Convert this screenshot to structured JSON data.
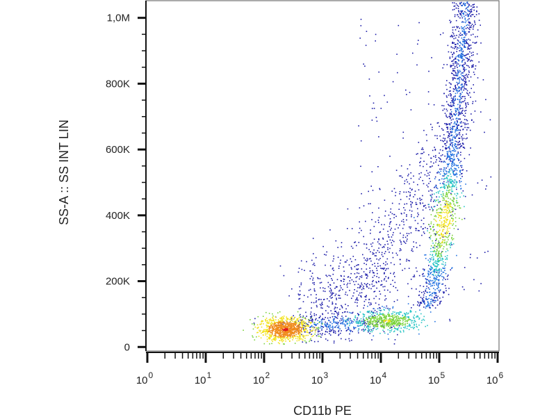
{
  "chart_data": {
    "type": "scatter",
    "title": "",
    "xlabel": "CD11b PE",
    "ylabel": "SS-A :: SS INT LIN",
    "xscale": "log",
    "yscale": "linear",
    "xlim": [
      1,
      1000000
    ],
    "ylim": [
      -10000,
      1050000
    ],
    "x_ticks": [
      {
        "value": 1,
        "base": "10",
        "exp": "0"
      },
      {
        "value": 10,
        "base": "10",
        "exp": "1"
      },
      {
        "value": 100,
        "base": "10",
        "exp": "2"
      },
      {
        "value": 1000,
        "base": "10",
        "exp": "3"
      },
      {
        "value": 10000,
        "base": "10",
        "exp": "4"
      },
      {
        "value": 100000,
        "base": "10",
        "exp": "5"
      },
      {
        "value": 1000000,
        "base": "10",
        "exp": "6"
      }
    ],
    "y_ticks": [
      {
        "value": 0,
        "label": "0"
      },
      {
        "value": 200000,
        "label": "200K"
      },
      {
        "value": 400000,
        "label": "400K"
      },
      {
        "value": 600000,
        "label": "600K"
      },
      {
        "value": 800000,
        "label": "800K"
      },
      {
        "value": 1000000,
        "label": "1,0M"
      }
    ],
    "grid": false,
    "legend": "none",
    "density_colors": [
      "#1a1aa8",
      "#1f6fe0",
      "#25c4c4",
      "#7ad33a",
      "#f2e21b",
      "#f08a1a",
      "#e21a1a"
    ],
    "populations": [
      {
        "name": "CD11b-negative low-SS",
        "x_log10_center": 2.35,
        "y_center": 55000,
        "relative_size": 0.22
      },
      {
        "name": "CD11b-intermediate low-SS",
        "x_log10_center": 4.1,
        "y_center": 80000,
        "relative_size": 0.14
      },
      {
        "name": "CD11b-positive high-SS",
        "x_log10_center": 5.1,
        "y_center": 380000,
        "relative_size": 0.3
      },
      {
        "name": "CD11b-positive top-SS",
        "x_log10_center": 5.45,
        "y_center": 850000,
        "relative_size": 0.1
      },
      {
        "name": "transitional",
        "x_log10_center": 4.0,
        "y_center": 250000,
        "relative_size": 0.24
      }
    ]
  }
}
